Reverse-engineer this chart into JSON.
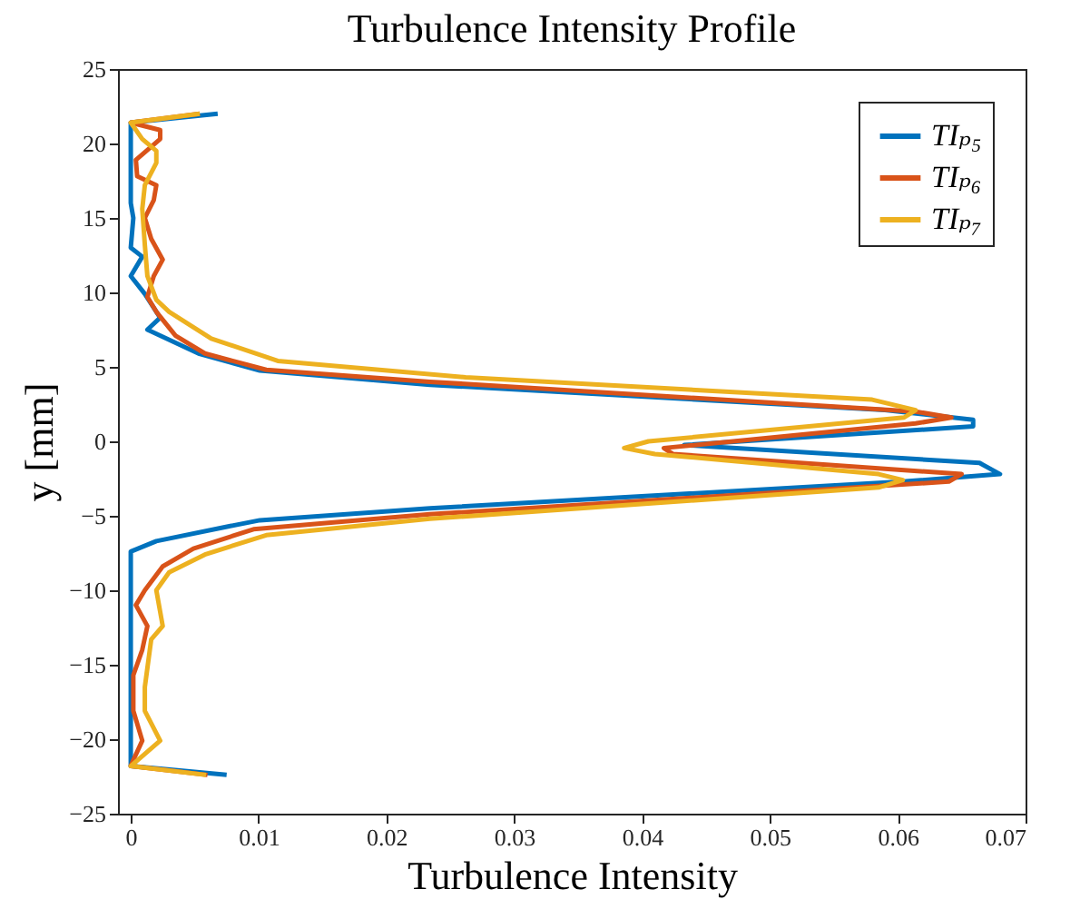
{
  "chart_data": {
    "type": "line",
    "title": "Turbulence Intensity Profile",
    "xlabel": "Turbulence Intensity",
    "ylabel": "y [mm]",
    "xlim": [
      -0.001,
      0.07
    ],
    "xticks": [
      0,
      0.01,
      0.02,
      0.03,
      0.04,
      0.05,
      0.06,
      0.07
    ],
    "ylim": [
      -25,
      25
    ],
    "yticks": [
      -25,
      -20,
      -15,
      -10,
      -5,
      0,
      5,
      10,
      15,
      20,
      25
    ],
    "legend": "top right",
    "line_style": "solid",
    "series": [
      {
        "name": "TIₚ₅",
        "color": "#0072bd",
        "x": [
          0.0068,
          0,
          0,
          0,
          0.0002,
          0,
          0.0009,
          0,
          0.0011,
          0.0023,
          0.0013,
          0.0053,
          0.0101,
          0.0234,
          0.059,
          0.0659,
          0.0659,
          0.0433,
          0.0664,
          0.068,
          0.0604,
          0.0234,
          0.0101,
          0.0077,
          0.002,
          0,
          0,
          0,
          0.0075
        ],
        "values": [
          22,
          21.4,
          19.9,
          16,
          15,
          13,
          12.4,
          11.1,
          9.9,
          8.3,
          7.5,
          5.9,
          4.75,
          3.8,
          2.1,
          1.45,
          1,
          -0.25,
          -1.45,
          -2.2,
          -2.7,
          -4.5,
          -5.3,
          -5.7,
          -6.7,
          -7.4,
          -15,
          -21.8,
          -22.4
        ]
      },
      {
        "name": "TIₚ₆",
        "color": "#d95319",
        "x": [
          0.0054,
          0,
          0.0023,
          0.0023,
          0.0004,
          0.0005,
          0.002,
          0.0018,
          0.0011,
          0.0016,
          0.0025,
          0.0018,
          0.0013,
          0.002,
          0.0035,
          0.0058,
          0.0106,
          0.0234,
          0.0614,
          0.0642,
          0.0614,
          0.0417,
          0.0424,
          0.065,
          0.064,
          0.0234,
          0.0096,
          0.0049,
          0.0025,
          0.0011,
          0.0004,
          0.0013,
          0.0009,
          0.0002,
          0.0002,
          0.0009,
          0.0002,
          0,
          0.006
        ],
        "values": [
          22,
          21.4,
          20.9,
          20.3,
          18.9,
          17.8,
          17.2,
          16.2,
          15,
          13.6,
          12.2,
          11.1,
          9.7,
          8.7,
          7.1,
          5.9,
          4.8,
          4,
          2,
          1.6,
          1.2,
          -0.45,
          -0.85,
          -2.2,
          -2.7,
          -4.9,
          -5.9,
          -7.2,
          -8.4,
          -10,
          -11,
          -12.4,
          -14,
          -15.7,
          -18.1,
          -20.1,
          -21.4,
          -21.8,
          -22.4
        ]
      },
      {
        "name": "TIₚ₇",
        "color": "#edb120",
        "x": [
          0.0054,
          0,
          0.0009,
          0.002,
          0.002,
          0.0011,
          0.0009,
          0.0011,
          0.0013,
          0.002,
          0.003,
          0.0063,
          0.0115,
          0.0262,
          0.058,
          0.0614,
          0.0605,
          0.0405,
          0.0386,
          0.041,
          0.0585,
          0.0604,
          0.0585,
          0.0234,
          0.0106,
          0.0058,
          0.003,
          0.002,
          0.0025,
          0.0016,
          0.0011,
          0.0011,
          0.0023,
          0,
          0.0059
        ],
        "values": [
          22,
          21.4,
          20.3,
          19.5,
          18.7,
          17.2,
          15.6,
          13.2,
          11.1,
          9.5,
          8.7,
          6.9,
          5.4,
          4.3,
          2.8,
          2.1,
          1.6,
          0,
          -0.45,
          -0.85,
          -2.2,
          -2.6,
          -3.1,
          -5.2,
          -6.3,
          -7.6,
          -8.8,
          -10,
          -12.4,
          -13.3,
          -16.5,
          -18.1,
          -20.1,
          -21.8,
          -22.4
        ]
      }
    ]
  }
}
